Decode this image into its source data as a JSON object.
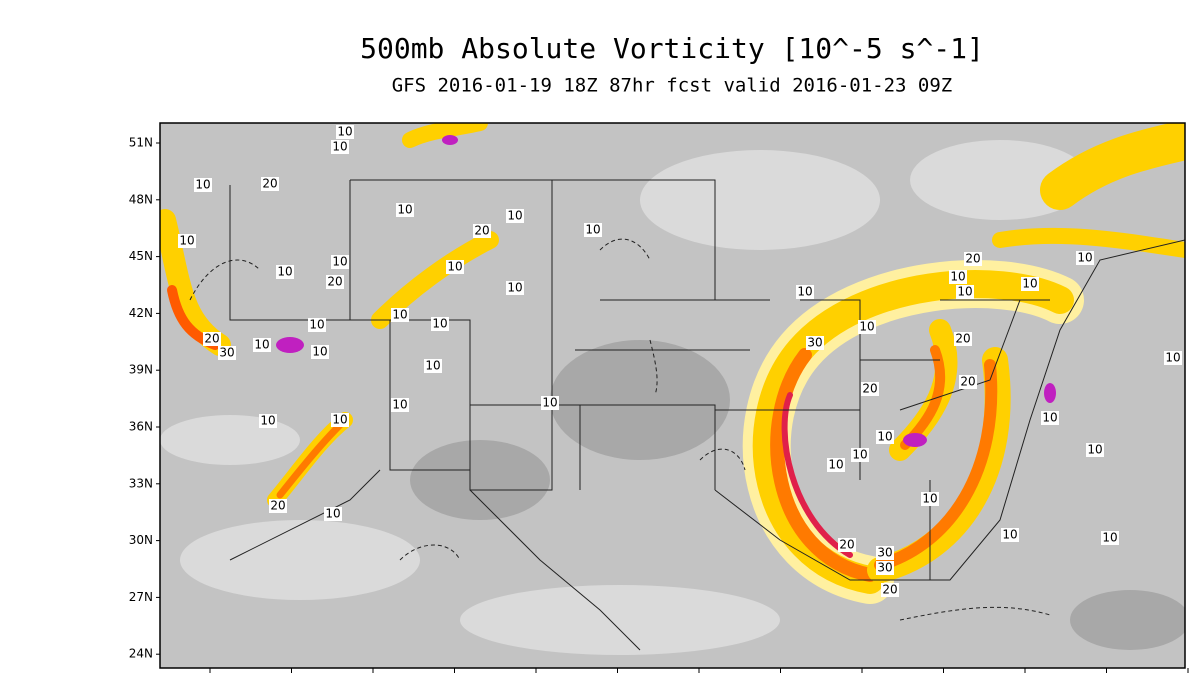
{
  "header": {
    "title": "500mb Absolute Vorticity [10^-5 s^-1]",
    "subtitle": "GFS 2016-01-19 18Z 87hr fcst valid 2016-01-23 09Z"
  },
  "map": {
    "lat_labels": [
      "51N",
      "48N",
      "45N",
      "42N",
      "39N",
      "36N",
      "33N",
      "30N",
      "27N",
      "24N"
    ],
    "contour_labels": [
      "10",
      "10",
      "10",
      "20",
      "10",
      "10",
      "10",
      "20",
      "10",
      "10",
      "10",
      "20",
      "10",
      "10",
      "10",
      "10",
      "10",
      "20",
      "30",
      "10",
      "10",
      "10",
      "10",
      "10",
      "10",
      "10",
      "20",
      "10",
      "10",
      "30",
      "10",
      "20",
      "10",
      "10",
      "10",
      "20",
      "20",
      "20",
      "10",
      "10",
      "10",
      "10",
      "10",
      "10",
      "10",
      "20",
      "30",
      "30",
      "20",
      "10",
      "10",
      "10"
    ]
  }
}
